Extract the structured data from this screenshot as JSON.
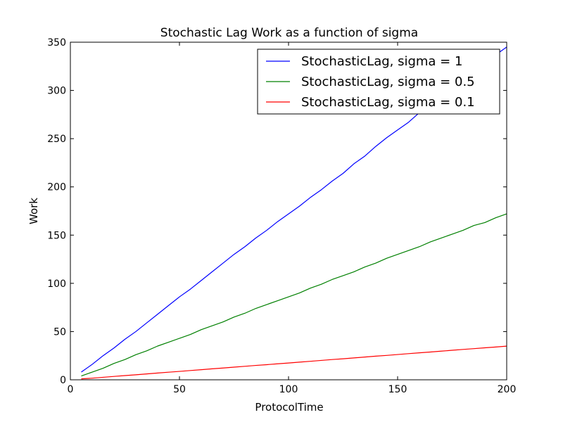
{
  "chart_data": {
    "type": "line",
    "title": "Stochastic Lag Work as a function of sigma",
    "xlabel": "ProtocolTime",
    "ylabel": "Work",
    "xlim": [
      0,
      200
    ],
    "ylim": [
      0,
      350
    ],
    "xticks": [
      0,
      50,
      100,
      150,
      200
    ],
    "yticks": [
      0,
      50,
      100,
      150,
      200,
      250,
      300,
      350
    ],
    "grid": false,
    "legend_position": "top-right",
    "series": [
      {
        "name": "StochasticLag, sigma = 1",
        "color": "#0000ff",
        "x": [
          5,
          10,
          15,
          20,
          25,
          30,
          35,
          40,
          45,
          50,
          55,
          60,
          65,
          70,
          75,
          80,
          85,
          90,
          95,
          100,
          105,
          110,
          115,
          120,
          125,
          130,
          135,
          140,
          145,
          150,
          155,
          160,
          165,
          170,
          175,
          180,
          185,
          190,
          195,
          200
        ],
        "values": [
          8,
          16,
          25,
          33,
          42,
          50,
          59,
          68,
          77,
          86,
          94,
          103,
          112,
          121,
          130,
          138,
          147,
          155,
          164,
          172,
          180,
          189,
          197,
          206,
          214,
          224,
          232,
          242,
          251,
          259,
          267,
          277,
          285,
          294,
          303,
          311,
          319,
          328,
          337,
          345
        ]
      },
      {
        "name": "StochasticLag, sigma = 0.5",
        "color": "#008000",
        "x": [
          5,
          10,
          15,
          20,
          25,
          30,
          35,
          40,
          45,
          50,
          55,
          60,
          65,
          70,
          75,
          80,
          85,
          90,
          95,
          100,
          105,
          110,
          115,
          120,
          125,
          130,
          135,
          140,
          145,
          150,
          155,
          160,
          165,
          170,
          175,
          180,
          185,
          190,
          195,
          200
        ],
        "values": [
          4,
          8,
          12,
          17,
          21,
          26,
          30,
          35,
          39,
          43,
          47,
          52,
          56,
          60,
          65,
          69,
          74,
          78,
          82,
          86,
          90,
          95,
          99,
          104,
          108,
          112,
          117,
          121,
          126,
          130,
          134,
          138,
          143,
          147,
          151,
          155,
          160,
          163,
          168,
          172
        ]
      },
      {
        "name": "StochasticLag, sigma = 0.1",
        "color": "#ff0000",
        "x": [
          5,
          10,
          15,
          20,
          25,
          30,
          35,
          40,
          45,
          50,
          55,
          60,
          65,
          70,
          75,
          80,
          85,
          90,
          95,
          100,
          105,
          110,
          115,
          120,
          125,
          130,
          135,
          140,
          145,
          150,
          155,
          160,
          165,
          170,
          175,
          180,
          185,
          190,
          195,
          200
        ],
        "values": [
          1,
          1.7,
          2.6,
          3.5,
          4.4,
          5.2,
          6.1,
          7,
          7.9,
          8.7,
          9.6,
          10.5,
          11.4,
          12.2,
          13.1,
          14,
          14.9,
          15.7,
          16.6,
          17.4,
          18.3,
          19.2,
          20.1,
          21,
          21.8,
          22.7,
          23.6,
          24.5,
          25.3,
          26.2,
          27.1,
          28,
          28.8,
          29.7,
          30.6,
          31.5,
          32.3,
          33.2,
          34,
          34.9
        ]
      }
    ]
  }
}
